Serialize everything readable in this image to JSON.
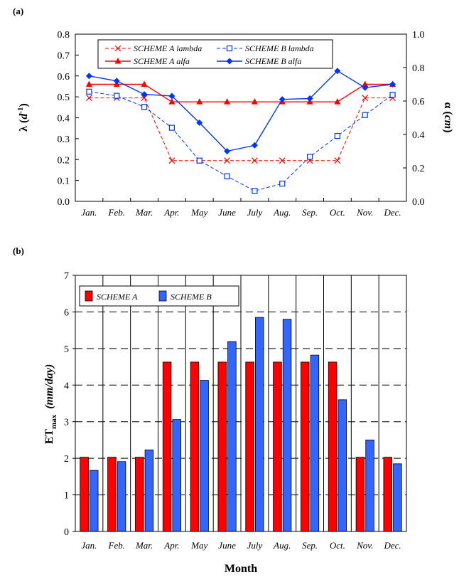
{
  "colors": {
    "scheme_a": "#ff0000",
    "scheme_b": "#0033ff",
    "axis": "#000000"
  },
  "chart_data": [
    {
      "id": "a",
      "panel_label": "(a)",
      "type": "line",
      "categories": [
        "Jan.",
        "Feb.",
        "Mar.",
        "Apr.",
        "May",
        "June",
        "July",
        "Aug.",
        "Sep.",
        "Oct.",
        "Nov.",
        "Dec."
      ],
      "ylabel_left": "λ (d-1)",
      "ylabel_right": "α (cm)",
      "ylim_left": [
        0,
        0.8
      ],
      "ylim_right": [
        0,
        1.0
      ],
      "yticks_left": [
        "0.0",
        "0.1",
        "0.2",
        "0.3",
        "0.4",
        "0.5",
        "0.6",
        "0.7",
        "0.8"
      ],
      "yticks_right": [
        "0.0",
        "0.2",
        "0.4",
        "0.6",
        "0.8",
        "1.0"
      ],
      "grid": false,
      "legend_position": "top-center",
      "series": [
        {
          "name": "SCHEME A lambda",
          "axis": "left",
          "style": "dashed",
          "marker": "x",
          "color": "#ff0000",
          "values": [
            0.495,
            0.495,
            0.495,
            0.195,
            0.195,
            0.195,
            0.195,
            0.195,
            0.195,
            0.195,
            0.495,
            0.495
          ]
        },
        {
          "name": "SCHEME B lambda",
          "axis": "left",
          "style": "dashed",
          "marker": "open-square",
          "color": "#0033ff",
          "values": [
            0.525,
            0.505,
            0.452,
            0.352,
            0.195,
            0.12,
            0.05,
            0.085,
            0.213,
            0.313,
            0.413,
            0.51
          ]
        },
        {
          "name": "SCHEME A alfa",
          "axis": "right",
          "style": "solid",
          "marker": "triangle",
          "color": "#ff0000",
          "values": [
            0.7,
            0.7,
            0.7,
            0.595,
            0.595,
            0.595,
            0.595,
            0.595,
            0.595,
            0.595,
            0.7,
            0.7
          ]
        },
        {
          "name": "SCHEME B alfa",
          "axis": "right",
          "style": "solid",
          "marker": "diamond",
          "color": "#0033ff",
          "values": [
            0.75,
            0.72,
            0.64,
            0.63,
            0.47,
            0.3,
            0.335,
            0.61,
            0.615,
            0.78,
            0.68,
            0.7
          ]
        }
      ]
    },
    {
      "id": "b",
      "panel_label": "(b)",
      "type": "bar",
      "categories": [
        "Jan.",
        "Feb.",
        "Mar.",
        "Apr.",
        "May",
        "June",
        "July",
        "Aug.",
        "Sep.",
        "Oct.",
        "Nov.",
        "Dec."
      ],
      "xlabel": "Month",
      "ylabel": "ETmax (mm/day)",
      "ylim": [
        0,
        7
      ],
      "yticks": [
        "0",
        "1",
        "2",
        "3",
        "4",
        "5",
        "6",
        "7"
      ],
      "grid": true,
      "legend_position": "top-left",
      "series": [
        {
          "name": "SCHEME A",
          "color": "#ff0000",
          "values": [
            2.03,
            2.03,
            2.03,
            4.63,
            4.63,
            4.63,
            4.63,
            4.63,
            4.63,
            4.63,
            2.03,
            2.03
          ]
        },
        {
          "name": "SCHEME B",
          "color": "#3366ff",
          "values": [
            1.67,
            1.91,
            2.23,
            3.06,
            4.13,
            5.19,
            5.85,
            5.8,
            4.82,
            3.6,
            2.5,
            1.85
          ]
        }
      ]
    }
  ]
}
